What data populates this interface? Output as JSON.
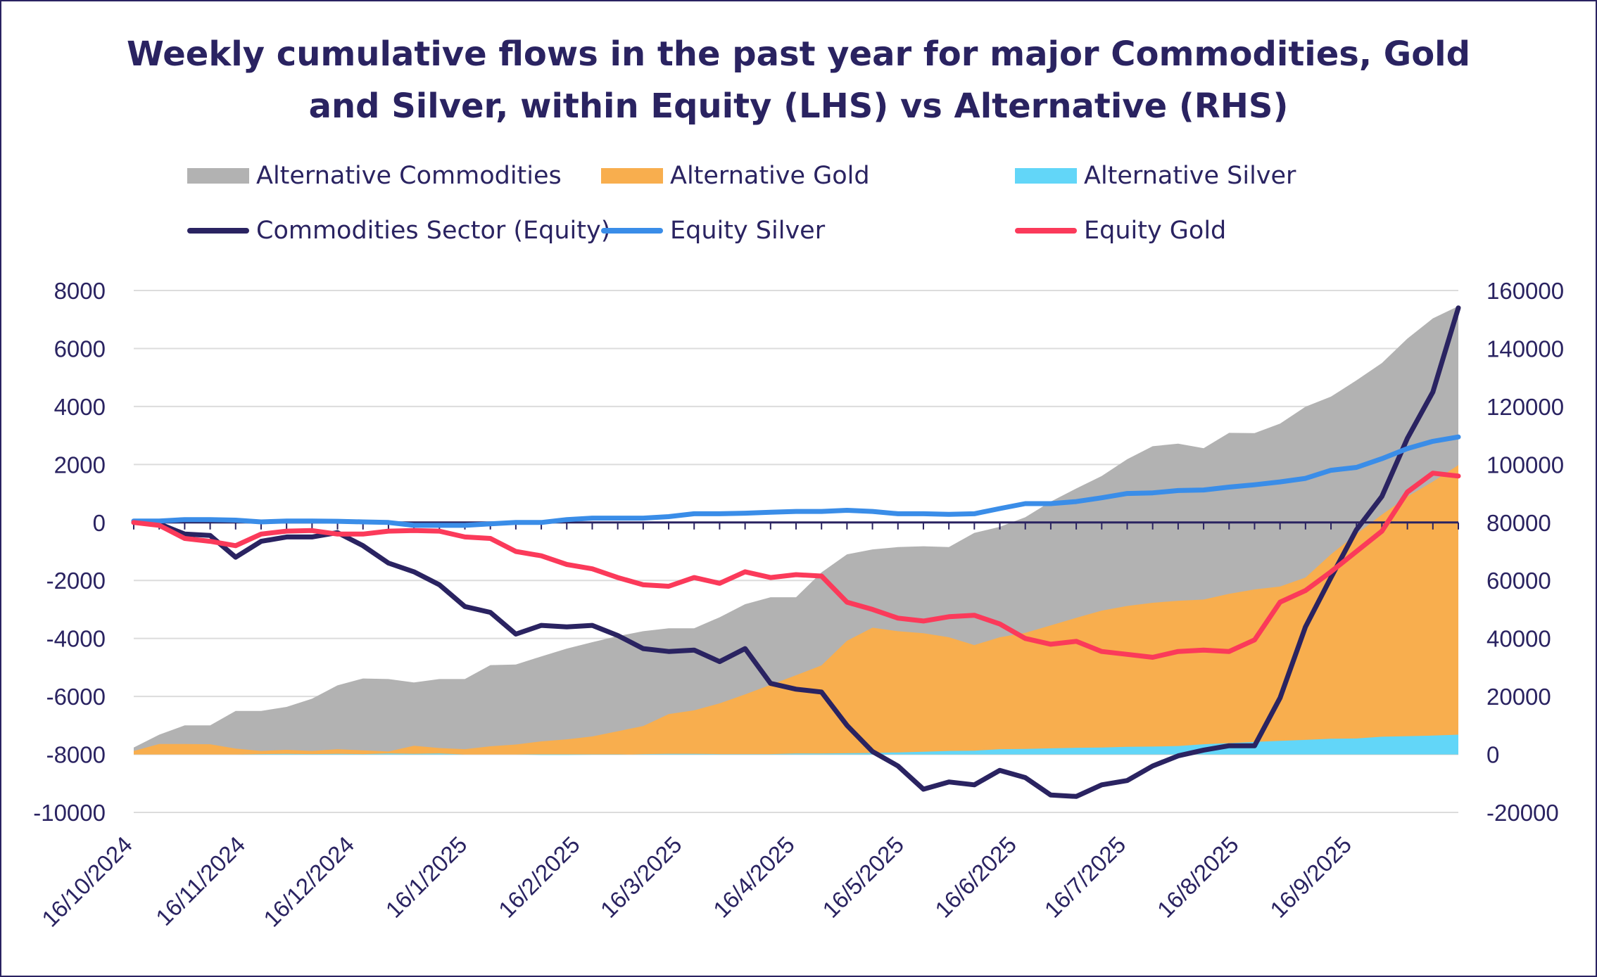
{
  "title": {
    "line1": "Weekly cumulative flows in the past year for major Commodities, Gold",
    "line2": "and Silver, within Equity (LHS) vs Alternative (RHS)"
  },
  "legend": {
    "items": [
      {
        "label": "Alternative Commodities",
        "color": "#b2b2b2",
        "kind": "area"
      },
      {
        "label": "Alternative Gold",
        "color": "#f8ae4e",
        "kind": "area"
      },
      {
        "label": "Alternative Silver",
        "color": "#62d6f8",
        "kind": "area"
      },
      {
        "label": "Commodities Sector (Equity)",
        "color": "#2a2361",
        "kind": "line"
      },
      {
        "label": "Equity Silver",
        "color": "#3a8de8",
        "kind": "line"
      },
      {
        "label": "Equity Gold",
        "color": "#fb3a5a",
        "kind": "line"
      }
    ]
  },
  "chart_data": {
    "type": "line",
    "title": "Weekly cumulative flows in the past year for major Commodities, Gold and Silver, within Equity (LHS) vs Alternative (RHS)",
    "x_start": "16/10/2024",
    "x_step_days": 7,
    "x_tick_labels": [
      "16/10/2024",
      "16/11/2024",
      "16/12/2024",
      "16/1/2025",
      "16/2/2025",
      "16/3/2025",
      "16/4/2025",
      "16/5/2025",
      "16/6/2025",
      "16/7/2025",
      "16/8/2025",
      "16/9/2025"
    ],
    "y_left": {
      "min": -10000,
      "max": 8000,
      "step": 2000,
      "ticks": [
        "8000",
        "6000",
        "4000",
        "2000",
        "0",
        "-2000",
        "-4000",
        "-6000",
        "-8000",
        "-10000"
      ]
    },
    "y_right": {
      "min": -20000,
      "max": 160000,
      "step": 20000,
      "ticks": [
        "160000",
        "140000",
        "120000",
        "100000",
        "80000",
        "60000",
        "40000",
        "20000",
        "0",
        "-20000"
      ]
    },
    "grid": "horizontal",
    "legend_position": "top",
    "series": [
      {
        "name": "Alternative Commodities",
        "axis": "right",
        "kind": "area",
        "color": "#b2b2b2",
        "values": [
          2400,
          6800,
          10000,
          10000,
          15000,
          15000,
          16400,
          19200,
          23800,
          26200,
          26000,
          24800,
          26000,
          26000,
          30800,
          31000,
          33800,
          36500,
          38700,
          40800,
          42500,
          43500,
          43500,
          47300,
          51800,
          54200,
          54200,
          62800,
          69000,
          70700,
          71500,
          71800,
          71500,
          76400,
          78500,
          81800,
          87200,
          91700,
          96000,
          101800,
          106300,
          107200,
          105600,
          110900,
          110800,
          114100,
          119900,
          123400,
          129000,
          135000,
          143400,
          150400,
          154600
        ],
        "style": "area"
      },
      {
        "name": "Alternative Gold",
        "axis": "right",
        "kind": "area",
        "color": "#f8ae4e",
        "values": [
          1000,
          3600,
          3700,
          3700,
          2200,
          1600,
          1400,
          1000,
          1000,
          1000,
          1000,
          1000,
          1000,
          1000,
          1000,
          1000,
          1000,
          1000,
          1000,
          1000,
          1000,
          1000,
          1000,
          1000,
          1000,
          1000,
          1000,
          1000,
          1000,
          1000,
          1000,
          1000,
          1000,
          1000,
          1000,
          1000,
          1000,
          1000,
          1000,
          1000,
          1000,
          1000,
          1000,
          1000,
          1000,
          1000,
          1000,
          1000,
          1000,
          1000,
          1000,
          1000,
          1000
        ],
        "values_top": [
          1200,
          3600,
          3600,
          3500,
          2000,
          1200,
          1600,
          1200,
          1800,
          1400,
          1000,
          3000,
          2200,
          1800,
          2800,
          3400,
          4500,
          5200,
          6200,
          8000,
          9800,
          13900,
          15200,
          17600,
          20700,
          24000,
          27300,
          30700,
          39200,
          43700,
          42500,
          41800,
          40400,
          37700,
          40400,
          41900,
          44500,
          47100,
          49600,
          51200,
          52300,
          53000,
          53400,
          55400,
          56900,
          57900,
          61000,
          69000,
          76000,
          82700,
          88900,
          94100,
          99800
        ]
      },
      {
        "name": "Alternative Silver",
        "axis": "right",
        "kind": "area",
        "color": "#62d6f8",
        "values_top": [
          0,
          0,
          0,
          0,
          0,
          100,
          200,
          100,
          200,
          100,
          300,
          200,
          300,
          0,
          0,
          0,
          -200,
          -200,
          -100,
          -100,
          100,
          200,
          200,
          100,
          100,
          100,
          300,
          300,
          400,
          500,
          700,
          900,
          1200,
          1300,
          1800,
          1900,
          2100,
          2300,
          2400,
          2600,
          2700,
          2900,
          3500,
          3900,
          4300,
          4700,
          5000,
          5400,
          5500,
          6100,
          6300,
          6500,
          6800
        ]
      },
      {
        "name": "Commodities Sector (Equity)",
        "axis": "left",
        "kind": "line",
        "color": "#2a2361",
        "values": [
          0,
          -50,
          -400,
          -450,
          -1200,
          -650,
          -500,
          -500,
          -350,
          -800,
          -1400,
          -1700,
          -2150,
          -2900,
          -3100,
          -3850,
          -3550,
          -3600,
          -3550,
          -3900,
          -4350,
          -4450,
          -4400,
          -4800,
          -4350,
          -5550,
          -5750,
          -5850,
          -7000,
          -7900,
          -8400,
          -9200,
          -8950,
          -9050,
          -8550,
          -8800,
          -9400,
          -9450,
          -9050,
          -8900,
          -8400,
          -8050,
          -7850,
          -7700,
          -7700,
          -6050,
          -3600,
          -1900,
          -250,
          900,
          2900,
          4500,
          7400
        ]
      },
      {
        "name": "Equity Silver",
        "axis": "left",
        "kind": "line",
        "color": "#3a8de8",
        "values": [
          50,
          50,
          100,
          100,
          80,
          20,
          50,
          50,
          40,
          20,
          0,
          -100,
          -100,
          -100,
          -50,
          0,
          0,
          100,
          150,
          150,
          150,
          200,
          300,
          300,
          320,
          350,
          380,
          380,
          420,
          380,
          300,
          300,
          280,
          300,
          480,
          650,
          650,
          720,
          850,
          1000,
          1020,
          1100,
          1120,
          1220,
          1300,
          1400,
          1520,
          1800,
          1900,
          2200,
          2550,
          2800,
          2950
        ]
      },
      {
        "name": "Equity Gold",
        "axis": "left",
        "kind": "line",
        "color": "#fb3a5a",
        "values": [
          0,
          -100,
          -550,
          -650,
          -800,
          -400,
          -300,
          -280,
          -400,
          -400,
          -300,
          -280,
          -300,
          -500,
          -550,
          -1000,
          -1150,
          -1450,
          -1600,
          -1900,
          -2150,
          -2200,
          -1900,
          -2100,
          -1700,
          -1900,
          -1800,
          -1850,
          -2750,
          -3000,
          -3300,
          -3400,
          -3250,
          -3200,
          -3500,
          -4000,
          -4200,
          -4100,
          -4450,
          -4550,
          -4650,
          -4450,
          -4400,
          -4450,
          -4050,
          -2750,
          -2350,
          -1700,
          -1000,
          -300,
          1050,
          1700,
          1600
        ]
      }
    ]
  }
}
